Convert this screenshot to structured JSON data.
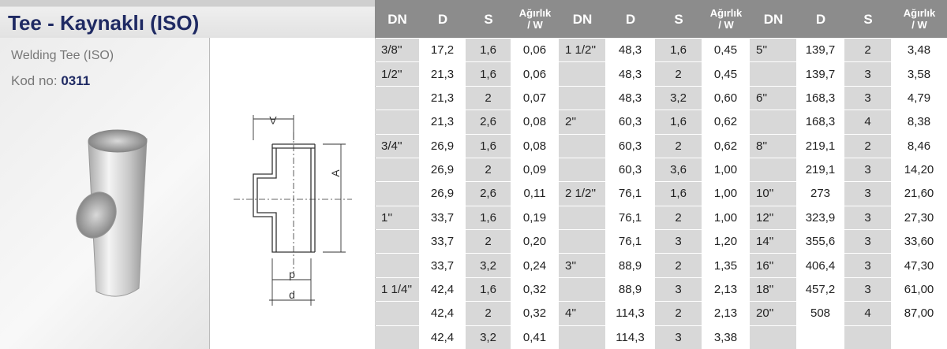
{
  "header": {
    "title": "Tee - Kaynaklı (ISO)",
    "subtitle": "Welding Tee (ISO)",
    "code_label": "Kod no:",
    "code": "0311"
  },
  "drawing": {
    "labels": [
      "A",
      "A",
      "p",
      "d"
    ]
  },
  "table": {
    "header": [
      [
        "DN"
      ],
      [
        "D"
      ],
      [
        "S"
      ],
      [
        "Ağırlık",
        "/ W"
      ],
      [
        "DN"
      ],
      [
        "D"
      ],
      [
        "S"
      ],
      [
        "Ağırlık",
        "/ W"
      ],
      [
        "DN"
      ],
      [
        "D"
      ],
      [
        "S"
      ],
      [
        "Ağırlık",
        "/ W"
      ]
    ],
    "rows": [
      [
        "3/8''",
        "17,2",
        "1,6",
        "0,06",
        "1 1/2''",
        "48,3",
        "1,6",
        "0,45",
        "5''",
        "139,7",
        "2",
        "3,48"
      ],
      [
        "1/2''",
        "21,3",
        "1,6",
        "0,06",
        null,
        "48,3",
        "2",
        "0,45",
        null,
        "139,7",
        "3",
        "3,58"
      ],
      [
        null,
        "21,3",
        "2",
        "0,07",
        null,
        "48,3",
        "3,2",
        "0,60",
        "6''",
        "168,3",
        "3",
        "4,79"
      ],
      [
        null,
        "21,3",
        "2,6",
        "0,08",
        "2''",
        "60,3",
        "1,6",
        "0,62",
        null,
        "168,3",
        "4",
        "8,38"
      ],
      [
        "3/4''",
        "26,9",
        "1,6",
        "0,08",
        null,
        "60,3",
        "2",
        "0,62",
        "8''",
        "219,1",
        "2",
        "8,46"
      ],
      [
        null,
        "26,9",
        "2",
        "0,09",
        null,
        "60,3",
        "3,6",
        "1,00",
        null,
        "219,1",
        "3",
        "14,20"
      ],
      [
        null,
        "26,9",
        "2,6",
        "0,11",
        "2 1/2''",
        "76,1",
        "1,6",
        "1,00",
        "10''",
        "273",
        "3",
        "21,60"
      ],
      [
        "1''",
        "33,7",
        "1,6",
        "0,19",
        null,
        "76,1",
        "2",
        "1,00",
        "12''",
        "323,9",
        "3",
        "27,30"
      ],
      [
        null,
        "33,7",
        "2",
        "0,20",
        null,
        "76,1",
        "3",
        "1,20",
        "14''",
        "355,6",
        "3",
        "33,60"
      ],
      [
        null,
        "33,7",
        "3,2",
        "0,24",
        "3''",
        "88,9",
        "2",
        "1,35",
        "16''",
        "406,4",
        "3",
        "47,30"
      ],
      [
        "1 1/4''",
        "42,4",
        "1,6",
        "0,32",
        null,
        "88,9",
        "3",
        "2,13",
        "18''",
        "457,2",
        "3",
        "61,00"
      ],
      [
        null,
        "42,4",
        "2",
        "0,32",
        "4''",
        "114,3",
        "2",
        "2,13",
        "20''",
        "508",
        "4",
        "87,00"
      ],
      [
        null,
        "42,4",
        "3,2",
        "0,41",
        null,
        "114,3",
        "3",
        "3,38",
        null,
        null,
        null,
        null
      ]
    ]
  }
}
